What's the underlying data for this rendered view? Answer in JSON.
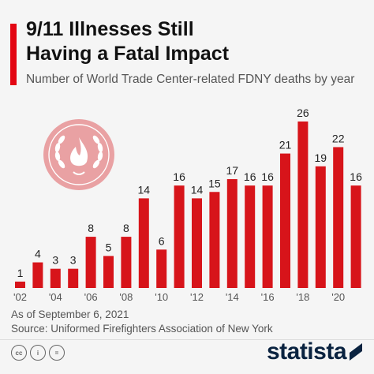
{
  "header": {
    "title_line1": "9/11 Illnesses Still",
    "title_line2": "Having a Fatal Impact",
    "subtitle": "Number of World Trade Center-related FDNY deaths by year"
  },
  "chart_data": {
    "type": "bar",
    "title": "9/11 Illnesses Still Having a Fatal Impact",
    "subtitle": "Number of World Trade Center-related FDNY deaths by year",
    "categories": [
      "2002",
      "2003",
      "2004",
      "2005",
      "2006",
      "2007",
      "2008",
      "2009",
      "2010",
      "2011",
      "2012",
      "2013",
      "2014",
      "2015",
      "2016",
      "2017",
      "2018",
      "2019",
      "2020",
      "2021"
    ],
    "values": [
      1,
      4,
      3,
      3,
      8,
      5,
      8,
      14,
      6,
      16,
      14,
      15,
      17,
      16,
      16,
      21,
      26,
      19,
      22,
      16
    ],
    "tick_labels": [
      "'02",
      "",
      "'04",
      "",
      "'06",
      "",
      "'08",
      "",
      "'10",
      "",
      "'12",
      "",
      "'14",
      "",
      "'16",
      "",
      "'18",
      "",
      "'20",
      ""
    ],
    "ylim": [
      0,
      26
    ],
    "grid": false,
    "legend": "none",
    "bar_color": "#d7141a"
  },
  "footer": {
    "date_note": "As of September 6, 2021",
    "source": "Source: Uniformed Firefighters Association of New York",
    "license_icons": [
      "cc",
      "by",
      "nd"
    ],
    "license_cc": "cc",
    "license_by": "i",
    "license_nd": "=",
    "brand": "statista"
  },
  "colors": {
    "accent": "#e30613",
    "bar": "#d7141a",
    "emblem": "#e9a1a3",
    "brand": "#0a2340"
  },
  "icons": {
    "emblem": "laurel-wreath-flame-icon"
  }
}
